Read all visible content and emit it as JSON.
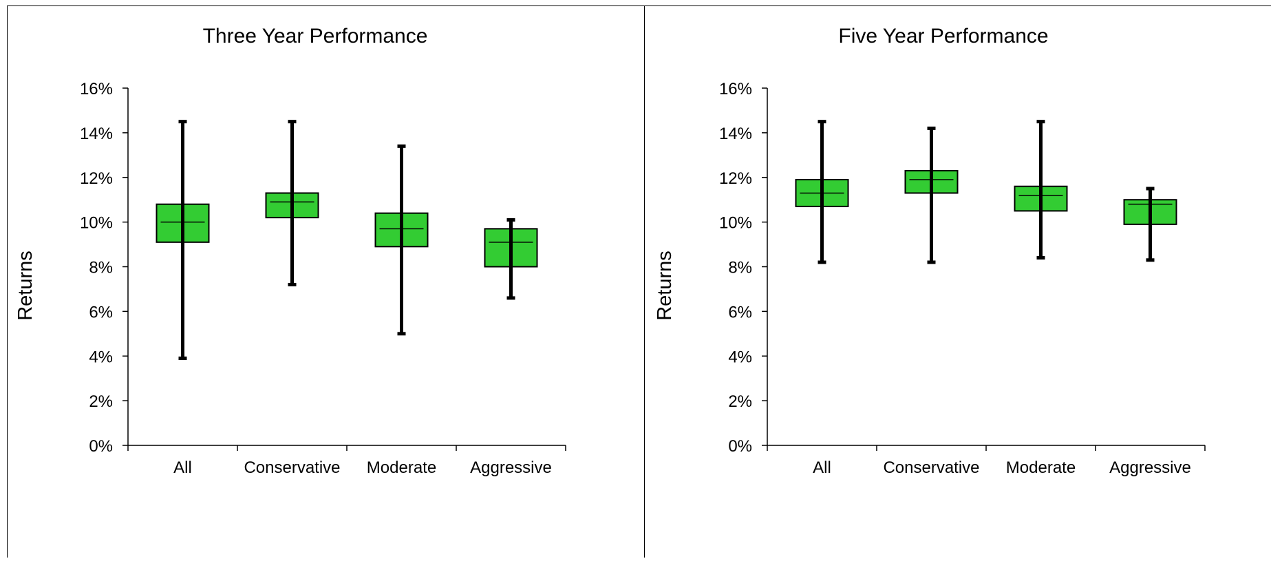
{
  "chart_data": [
    {
      "type": "boxplot",
      "title": "Three Year Performance",
      "ylabel": "Returns",
      "xlabel": "",
      "ylim": [
        0,
        16
      ],
      "yticks": [
        "0%",
        "2%",
        "4%",
        "6%",
        "8%",
        "10%",
        "12%",
        "14%",
        "16%"
      ],
      "categories": [
        "All",
        "Conservative",
        "Moderate",
        "Aggressive"
      ],
      "series": [
        {
          "values": [
            {
              "min": 3.9,
              "q1": 9.1,
              "median": 10.0,
              "q3": 10.8,
              "max": 14.5
            },
            {
              "min": 7.2,
              "q1": 10.2,
              "median": 10.9,
              "q3": 11.3,
              "max": 14.5
            },
            {
              "min": 5.0,
              "q1": 8.9,
              "median": 9.7,
              "q3": 10.4,
              "max": 13.4
            },
            {
              "min": 6.6,
              "q1": 8.0,
              "median": 9.1,
              "q3": 9.7,
              "max": 10.1
            }
          ]
        }
      ],
      "box_color": "#33cc33",
      "grid": false
    },
    {
      "type": "boxplot",
      "title": "Five Year Performance",
      "ylabel": "Returns",
      "xlabel": "",
      "ylim": [
        0,
        16
      ],
      "yticks": [
        "0%",
        "2%",
        "4%",
        "6%",
        "8%",
        "10%",
        "12%",
        "14%",
        "16%"
      ],
      "categories": [
        "All",
        "Conservative",
        "Moderate",
        "Aggressive"
      ],
      "series": [
        {
          "values": [
            {
              "min": 8.2,
              "q1": 10.7,
              "median": 11.3,
              "q3": 11.9,
              "max": 14.5
            },
            {
              "min": 8.2,
              "q1": 11.3,
              "median": 11.9,
              "q3": 12.3,
              "max": 14.2
            },
            {
              "min": 8.4,
              "q1": 10.5,
              "median": 11.2,
              "q3": 11.6,
              "max": 14.5
            },
            {
              "min": 8.3,
              "q1": 9.9,
              "median": 10.8,
              "q3": 11.0,
              "max": 11.5
            }
          ]
        }
      ],
      "box_color": "#33cc33",
      "grid": false
    }
  ]
}
